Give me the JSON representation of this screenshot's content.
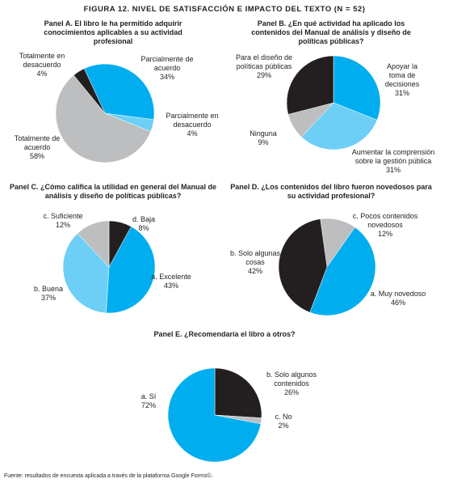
{
  "figure_title": "FIGURA 12. NIVEL DE SATISFACCIÓN E IMPACTO DEL TEXTO (N = 52)",
  "source": "Fuente: resultados de encuesta aplicada a través de la plataforma Google Forms©.",
  "chart_data": [
    {
      "type": "pie",
      "title": "Panel A. El libro le ha permitido adquirir conocimientos aplicables a su actividad profesional",
      "categories": [
        "Parcialmente de acuerdo",
        "Parcialmente en desacuerdo",
        "Totalmente de acuerdo",
        "Totalmente en desacuerdo"
      ],
      "values": [
        34,
        4,
        58,
        4
      ],
      "value_labels": [
        "34%",
        "4%",
        "58%",
        "4%"
      ],
      "colors": [
        "#00aeef",
        "#6dcff6",
        "#bcbec0",
        "#231f20"
      ]
    },
    {
      "type": "pie",
      "title": "Panel B. ¿En qué actividad ha aplicado los contenidos del Manual de análisis y diseño de políticas públicas?",
      "categories": [
        "Apoyar la toma de decisiones",
        "Aumentar la comprensión sobre la gestión pública",
        "Ninguna",
        "Para el diseño de políticas públicas"
      ],
      "values": [
        31,
        31,
        9,
        29
      ],
      "value_labels": [
        "31%",
        "31%",
        "9%",
        "29%"
      ],
      "colors": [
        "#00aeef",
        "#6dcff6",
        "#bcbec0",
        "#231f20"
      ]
    },
    {
      "type": "pie",
      "title": "Panel C. ¿Cómo califica la utilidad en general del Manual de análisis y diseño de políticas públicas?",
      "categories": [
        "d. Baja",
        "a. Excelente",
        "b. Buena",
        "c. Suficiente"
      ],
      "values": [
        8,
        43,
        37,
        12
      ],
      "value_labels": [
        "8%",
        "43%",
        "37%",
        "12%"
      ],
      "colors": [
        "#231f20",
        "#00aeef",
        "#6dcff6",
        "#bcbec0"
      ]
    },
    {
      "type": "pie",
      "title": "Panel D. ¿Los contenidos del libro fueron novedosos para su actividad profesional?",
      "categories": [
        "c. Pocos contenidos novedosos",
        "a. Muy novedoso",
        "b. Solo algunas cosas"
      ],
      "values": [
        12,
        46,
        42
      ],
      "value_labels": [
        "12%",
        "46%",
        "42%"
      ],
      "colors": [
        "#bcbec0",
        "#00aeef",
        "#231f20"
      ]
    },
    {
      "type": "pie",
      "title": "Panel E. ¿Recomendaría el libro a otros?",
      "categories": [
        "b. Solo algunos contenidos",
        "c. No",
        "a. Sí"
      ],
      "values": [
        26,
        2,
        72
      ],
      "value_labels": [
        "26%",
        "2%",
        "72%"
      ],
      "colors": [
        "#231f20",
        "#bcbec0",
        "#00aeef"
      ]
    }
  ]
}
